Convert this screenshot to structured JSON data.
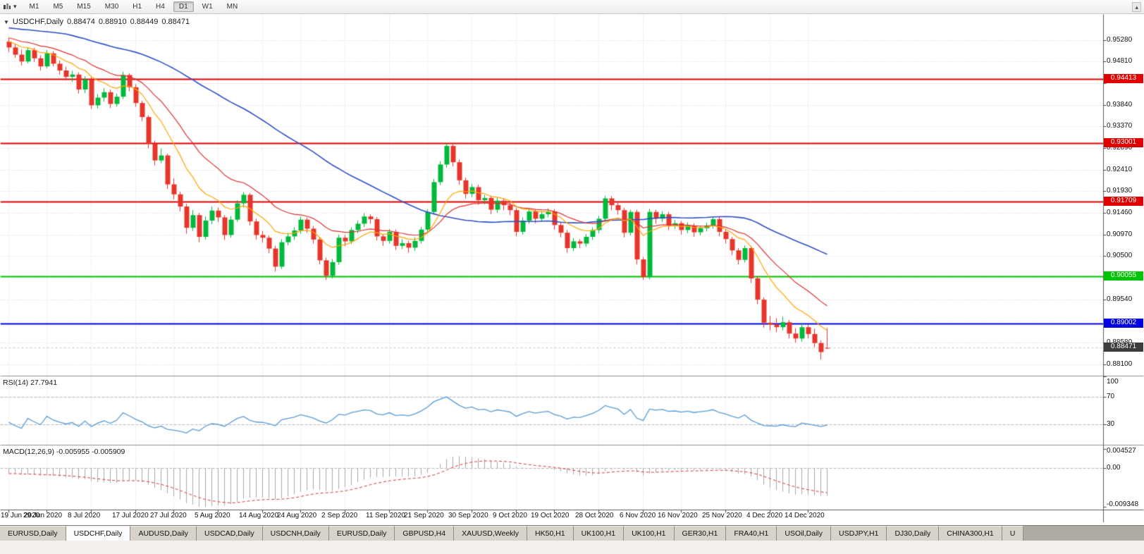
{
  "icons": {
    "dropdown": "▾",
    "collapse": "▼",
    "scroll_up": "▴"
  },
  "toolbar": {
    "timeframes": [
      "M1",
      "M5",
      "M15",
      "M30",
      "H1",
      "H4",
      "D1",
      "W1",
      "MN"
    ],
    "active_timeframe": "D1"
  },
  "chart_header": {
    "symbol": "USDCHF,Daily",
    "open": "0.88474",
    "high": "0.88910",
    "low": "0.88449",
    "close": "0.88471"
  },
  "colors": {
    "bull": "#00B93C",
    "bear": "#E6352B",
    "grid": "#DBDBDB",
    "axis_line": "#5A5A5A",
    "separator": "#8F8F8F",
    "current_line": "#C8C8C8"
  },
  "chart_data": {
    "type": "candlestick",
    "symbol": "USDCHF",
    "timeframe": "Daily",
    "ylim": [
      0.8785,
      0.9585
    ],
    "y_ticks": [
      "0.95280",
      "0.94810",
      "0.94320",
      "0.93840",
      "0.93370",
      "0.92890",
      "0.92410",
      "0.91930",
      "0.91460",
      "0.90970",
      "0.90500",
      "0.90020",
      "0.89540",
      "0.89060",
      "0.88580",
      "0.88100"
    ],
    "date_ticks": [
      {
        "i": 0,
        "label": "19 Jun 2020"
      },
      {
        "i": 6,
        "label": "29 Jun 2020"
      },
      {
        "i": 13,
        "label": "8 Jul 2020"
      },
      {
        "i": 20,
        "label": "17 Jul 2020"
      },
      {
        "i": 26,
        "label": "27 Jul 2020"
      },
      {
        "i": 33,
        "label": "5 Aug 2020"
      },
      {
        "i": 40,
        "label": "14 Aug 2020"
      },
      {
        "i": 46,
        "label": "24 Aug 2020"
      },
      {
        "i": 53,
        "label": "2 Sep 2020"
      },
      {
        "i": 60,
        "label": "11 Sep 2020"
      },
      {
        "i": 66,
        "label": "21 Sep 2020"
      },
      {
        "i": 73,
        "label": "30 Sep 2020"
      },
      {
        "i": 80,
        "label": "9 Oct 2020"
      },
      {
        "i": 86,
        "label": "19 Oct 2020"
      },
      {
        "i": 93,
        "label": "28 Oct 2020"
      },
      {
        "i": 100,
        "label": "6 Nov 2020"
      },
      {
        "i": 106,
        "label": "16 Nov 2020"
      },
      {
        "i": 113,
        "label": "25 Nov 2020"
      },
      {
        "i": 120,
        "label": "4 Dec 2020"
      },
      {
        "i": 126,
        "label": "14 Dec 2020"
      }
    ],
    "levels": [
      {
        "label": "0.94413",
        "value": 0.94413,
        "color": "#E00000",
        "current": false
      },
      {
        "label": "0.93001",
        "value": 0.93001,
        "color": "#E00000",
        "current": false
      },
      {
        "label": "0.91709",
        "value": 0.91709,
        "color": "#E00000",
        "current": false
      },
      {
        "label": "0.90055",
        "value": 0.90055,
        "color": "#00C400",
        "current": false
      },
      {
        "label": "0.89002",
        "value": 0.89002,
        "color": "#0000E0",
        "current": false
      },
      {
        "label": "0.88471",
        "value": 0.88471,
        "color": "#3C3C3C",
        "current": true
      }
    ],
    "moving_averages": [
      {
        "name": "ma-slow",
        "type": "sma",
        "period": 50,
        "color": "#2E4FC4",
        "width": 1.6
      },
      {
        "name": "ma-medium",
        "type": "ema",
        "period": 20,
        "color": "#E03030",
        "width": 1.2
      },
      {
        "name": "ma-fast",
        "type": "ema",
        "period": 10,
        "color": "#FFA500",
        "width": 1.2
      }
    ],
    "rsi": {
      "label": "RSI(14) 27.7941",
      "period": 14,
      "current": 27.7941,
      "ylim": [
        0,
        100
      ],
      "levels": [
        70,
        30
      ],
      "axis_labels": [
        "100",
        "70",
        "30"
      ],
      "color": "#569CD6"
    },
    "macd": {
      "label": "MACD(12,26,9) -0.005955 -0.005909",
      "fast": 12,
      "slow": 26,
      "signal_period": 9,
      "current": -0.005955,
      "signal_current": -0.005909,
      "ylim": [
        -0.009348,
        0.004527
      ],
      "axis_labels": [
        "0.004527",
        "0.00",
        "-0.009348"
      ],
      "histogram_color": "#A8A8A8",
      "signal_color": "#E03030"
    },
    "prehistory_closes": [
      0.9618,
      0.9611,
      0.9615,
      0.9605,
      0.9598,
      0.9603,
      0.9594,
      0.9587,
      0.9592,
      0.9582,
      0.9575,
      0.958,
      0.9571,
      0.9564,
      0.9569,
      0.956,
      0.9553,
      0.9558,
      0.9549,
      0.9542,
      0.9547,
      0.9539,
      0.9532,
      0.9537,
      0.9529,
      0.9523,
      0.9528,
      0.9535,
      0.9542,
      0.9536,
      0.9529,
      0.9524,
      0.953,
      0.9537,
      0.9531,
      0.9525,
      0.9519,
      0.9526,
      0.9532,
      0.9522
    ],
    "ohlc": [
      [
        0.9525,
        0.9533,
        0.9502,
        0.9512
      ],
      [
        0.9512,
        0.952,
        0.9489,
        0.9496
      ],
      [
        0.9496,
        0.9507,
        0.9472,
        0.9481
      ],
      [
        0.9481,
        0.9512,
        0.9477,
        0.9506
      ],
      [
        0.9506,
        0.9511,
        0.948,
        0.9488
      ],
      [
        0.9488,
        0.9495,
        0.9461,
        0.947
      ],
      [
        0.947,
        0.9506,
        0.9466,
        0.9499
      ],
      [
        0.9499,
        0.9504,
        0.947,
        0.9476
      ],
      [
        0.9476,
        0.9483,
        0.9452,
        0.9461
      ],
      [
        0.9461,
        0.9469,
        0.9439,
        0.9447
      ],
      [
        0.9447,
        0.946,
        0.9436,
        0.9452
      ],
      [
        0.9452,
        0.9457,
        0.941,
        0.9419
      ],
      [
        0.9419,
        0.9448,
        0.9411,
        0.9441
      ],
      [
        0.9441,
        0.9446,
        0.9376,
        0.9384
      ],
      [
        0.9384,
        0.9409,
        0.9377,
        0.9401
      ],
      [
        0.9401,
        0.9422,
        0.9392,
        0.9413
      ],
      [
        0.9413,
        0.9419,
        0.9378,
        0.9387
      ],
      [
        0.9387,
        0.941,
        0.9381,
        0.9403
      ],
      [
        0.9403,
        0.9458,
        0.9398,
        0.9451
      ],
      [
        0.9451,
        0.9455,
        0.9415,
        0.9424
      ],
      [
        0.9424,
        0.9431,
        0.9381,
        0.9389
      ],
      [
        0.9389,
        0.9394,
        0.9349,
        0.9358
      ],
      [
        0.9358,
        0.9362,
        0.9289,
        0.9299
      ],
      [
        0.9299,
        0.9306,
        0.9251,
        0.9262
      ],
      [
        0.9262,
        0.9288,
        0.9256,
        0.9273
      ],
      [
        0.9273,
        0.9277,
        0.9199,
        0.9209
      ],
      [
        0.9209,
        0.9222,
        0.9176,
        0.9187
      ],
      [
        0.9187,
        0.9193,
        0.9149,
        0.916
      ],
      [
        0.916,
        0.9166,
        0.91,
        0.9113
      ],
      [
        0.9113,
        0.9152,
        0.9106,
        0.9141
      ],
      [
        0.9141,
        0.9146,
        0.9081,
        0.9093
      ],
      [
        0.9093,
        0.9138,
        0.9087,
        0.9129
      ],
      [
        0.9129,
        0.916,
        0.9121,
        0.9151
      ],
      [
        0.9151,
        0.9158,
        0.9126,
        0.9136
      ],
      [
        0.9136,
        0.9141,
        0.9086,
        0.9097
      ],
      [
        0.9097,
        0.9139,
        0.9091,
        0.9131
      ],
      [
        0.9131,
        0.9174,
        0.9126,
        0.9167
      ],
      [
        0.9167,
        0.9192,
        0.9158,
        0.9186
      ],
      [
        0.9186,
        0.919,
        0.9118,
        0.9127
      ],
      [
        0.9127,
        0.9133,
        0.9087,
        0.9097
      ],
      [
        0.9097,
        0.9106,
        0.908,
        0.9091
      ],
      [
        0.9091,
        0.9096,
        0.9057,
        0.9067
      ],
      [
        0.9067,
        0.9073,
        0.9016,
        0.9027
      ],
      [
        0.9027,
        0.9088,
        0.9022,
        0.9081
      ],
      [
        0.9081,
        0.9102,
        0.9074,
        0.9094
      ],
      [
        0.9094,
        0.9114,
        0.9086,
        0.9107
      ],
      [
        0.9107,
        0.9138,
        0.91,
        0.9131
      ],
      [
        0.9131,
        0.9136,
        0.9102,
        0.9111
      ],
      [
        0.9111,
        0.9117,
        0.9078,
        0.9087
      ],
      [
        0.9087,
        0.9092,
        0.9032,
        0.9041
      ],
      [
        0.9041,
        0.9047,
        0.8998,
        0.9007
      ],
      [
        0.9007,
        0.9044,
        0.9001,
        0.9037
      ],
      [
        0.9037,
        0.9098,
        0.9031,
        0.9091
      ],
      [
        0.9091,
        0.9097,
        0.9072,
        0.9083
      ],
      [
        0.9083,
        0.9114,
        0.9077,
        0.9108
      ],
      [
        0.9108,
        0.9129,
        0.9101,
        0.9122
      ],
      [
        0.9122,
        0.9145,
        0.9115,
        0.9138
      ],
      [
        0.9138,
        0.9143,
        0.9122,
        0.9132
      ],
      [
        0.9132,
        0.9137,
        0.9085,
        0.9094
      ],
      [
        0.9094,
        0.9099,
        0.9073,
        0.9084
      ],
      [
        0.9084,
        0.911,
        0.9078,
        0.9104
      ],
      [
        0.9104,
        0.9109,
        0.9064,
        0.9073
      ],
      [
        0.9073,
        0.9088,
        0.9066,
        0.9079
      ],
      [
        0.9079,
        0.9084,
        0.9058,
        0.9069
      ],
      [
        0.9069,
        0.9092,
        0.9062,
        0.9084
      ],
      [
        0.9084,
        0.9115,
        0.9078,
        0.9109
      ],
      [
        0.9109,
        0.9154,
        0.9103,
        0.9148
      ],
      [
        0.9148,
        0.9221,
        0.9142,
        0.9214
      ],
      [
        0.9214,
        0.926,
        0.9207,
        0.9253
      ],
      [
        0.9253,
        0.93,
        0.9246,
        0.9294
      ],
      [
        0.9294,
        0.9298,
        0.9249,
        0.9258
      ],
      [
        0.9258,
        0.9264,
        0.9208,
        0.9218
      ],
      [
        0.9218,
        0.9224,
        0.9178,
        0.9188
      ],
      [
        0.9188,
        0.921,
        0.9181,
        0.9203
      ],
      [
        0.9203,
        0.9208,
        0.9164,
        0.9174
      ],
      [
        0.9174,
        0.9186,
        0.9165,
        0.9179
      ],
      [
        0.9179,
        0.9184,
        0.9143,
        0.9153
      ],
      [
        0.9153,
        0.918,
        0.9146,
        0.9173
      ],
      [
        0.9173,
        0.9178,
        0.9152,
        0.9163
      ],
      [
        0.9163,
        0.9168,
        0.9141,
        0.9152
      ],
      [
        0.9152,
        0.9157,
        0.9094,
        0.9104
      ],
      [
        0.9104,
        0.9136,
        0.9098,
        0.9129
      ],
      [
        0.9129,
        0.9156,
        0.9122,
        0.9149
      ],
      [
        0.9149,
        0.9154,
        0.9123,
        0.9133
      ],
      [
        0.9133,
        0.915,
        0.9126,
        0.9143
      ],
      [
        0.9143,
        0.9156,
        0.9136,
        0.9149
      ],
      [
        0.9149,
        0.9154,
        0.9109,
        0.9119
      ],
      [
        0.9119,
        0.9125,
        0.9092,
        0.9102
      ],
      [
        0.9102,
        0.9108,
        0.9058,
        0.9068
      ],
      [
        0.9068,
        0.909,
        0.9061,
        0.9083
      ],
      [
        0.9083,
        0.9088,
        0.9068,
        0.9078
      ],
      [
        0.9078,
        0.9099,
        0.9071,
        0.9093
      ],
      [
        0.9093,
        0.9114,
        0.9086,
        0.9108
      ],
      [
        0.9108,
        0.9139,
        0.9101,
        0.9133
      ],
      [
        0.9133,
        0.9184,
        0.9126,
        0.9178
      ],
      [
        0.9178,
        0.9183,
        0.9152,
        0.9163
      ],
      [
        0.9163,
        0.9168,
        0.9142,
        0.9152
      ],
      [
        0.9152,
        0.9157,
        0.9092,
        0.9102
      ],
      [
        0.9102,
        0.9153,
        0.9096,
        0.9148
      ],
      [
        0.9148,
        0.9153,
        0.9032,
        0.9043
      ],
      [
        0.9043,
        0.9048,
        0.8998,
        0.9004
      ],
      [
        0.9004,
        0.9155,
        0.8999,
        0.9148
      ],
      [
        0.9148,
        0.9153,
        0.9122,
        0.9133
      ],
      [
        0.9133,
        0.915,
        0.9126,
        0.9143
      ],
      [
        0.9143,
        0.9148,
        0.9108,
        0.9118
      ],
      [
        0.9118,
        0.913,
        0.9111,
        0.9123
      ],
      [
        0.9123,
        0.9128,
        0.9098,
        0.9108
      ],
      [
        0.9108,
        0.9125,
        0.9101,
        0.9118
      ],
      [
        0.9118,
        0.9123,
        0.9093,
        0.9103
      ],
      [
        0.9103,
        0.9118,
        0.9096,
        0.9112
      ],
      [
        0.9112,
        0.9124,
        0.9105,
        0.9118
      ],
      [
        0.9118,
        0.9138,
        0.9111,
        0.9132
      ],
      [
        0.9132,
        0.9137,
        0.9094,
        0.9104
      ],
      [
        0.9104,
        0.911,
        0.9078,
        0.9088
      ],
      [
        0.9088,
        0.9093,
        0.9053,
        0.9063
      ],
      [
        0.9063,
        0.9068,
        0.9032,
        0.9042
      ],
      [
        0.9042,
        0.9074,
        0.9036,
        0.9068
      ],
      [
        0.9068,
        0.9073,
        0.8991,
        0.9001
      ],
      [
        0.9001,
        0.9006,
        0.8944,
        0.8954
      ],
      [
        0.8954,
        0.8959,
        0.8892,
        0.8903
      ],
      [
        0.8903,
        0.8918,
        0.8886,
        0.8899
      ],
      [
        0.8899,
        0.8913,
        0.8882,
        0.8893
      ],
      [
        0.8893,
        0.8916,
        0.8886,
        0.8904
      ],
      [
        0.8904,
        0.8909,
        0.8868,
        0.8879
      ],
      [
        0.8879,
        0.8891,
        0.8859,
        0.8868
      ],
      [
        0.8868,
        0.8903,
        0.8861,
        0.8893
      ],
      [
        0.8893,
        0.8898,
        0.8868,
        0.8878
      ],
      [
        0.8878,
        0.889,
        0.8849,
        0.8858
      ],
      [
        0.8858,
        0.8864,
        0.8821,
        0.8838
      ],
      [
        0.88474,
        0.8891,
        0.88449,
        0.88471
      ]
    ]
  },
  "bottom_tabs": {
    "items": [
      {
        "label": "EURUSD,Daily",
        "active": false
      },
      {
        "label": "USDCHF,Daily",
        "active": true
      },
      {
        "label": "AUDUSD,Daily",
        "active": false
      },
      {
        "label": "USDCAD,Daily",
        "active": false
      },
      {
        "label": "USDCNH,Daily",
        "active": false
      },
      {
        "label": "EURUSD,Daily",
        "active": false
      },
      {
        "label": "GBPUSD,H4",
        "active": false
      },
      {
        "label": "XAUUSD,Weekly",
        "active": false
      },
      {
        "label": "HK50,H1",
        "active": false
      },
      {
        "label": "UK100,H1",
        "active": false
      },
      {
        "label": "UK100,H1",
        "active": false
      },
      {
        "label": "GER30,H1",
        "active": false
      },
      {
        "label": "FRA40,H1",
        "active": false
      },
      {
        "label": "USOil,Daily",
        "active": false
      },
      {
        "label": "USDJPY,H1",
        "active": false
      },
      {
        "label": "DJ30,Daily",
        "active": false
      },
      {
        "label": "CHINA300,H1",
        "active": false
      },
      {
        "label": "U",
        "active": false
      }
    ]
  }
}
